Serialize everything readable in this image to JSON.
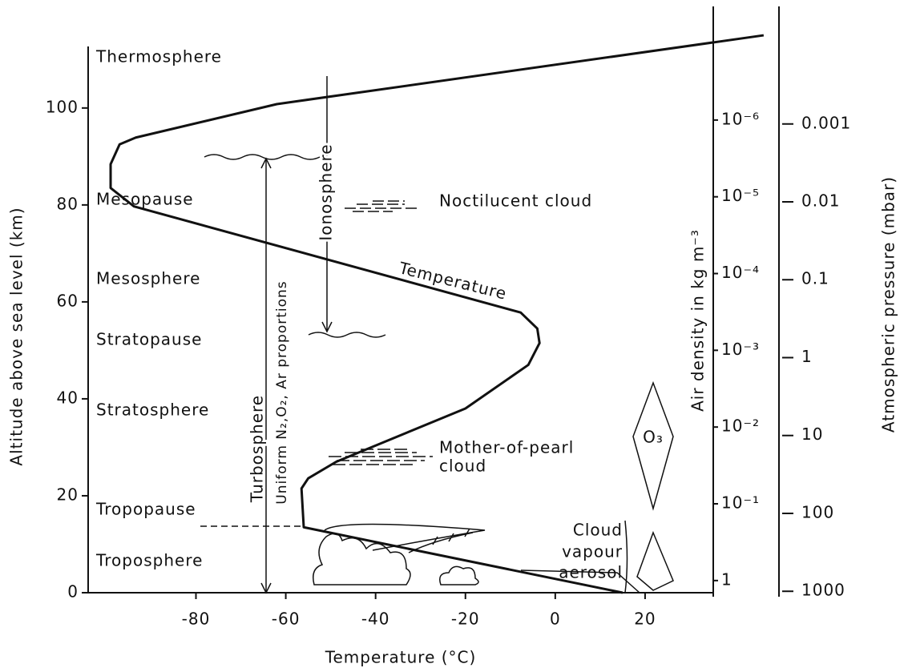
{
  "chart_data": {
    "type": "line",
    "x_label": "Temperature (°C)",
    "y_label": "Altitude above sea level (km)",
    "y2_label": "Air density in kg m⁻³",
    "y3_label": "Atmospheric pressure (mbar)",
    "xlim": [
      -104,
      35
    ],
    "ylim": [
      0,
      116
    ],
    "xticks": [
      -80,
      -60,
      -40,
      -20,
      0,
      20
    ],
    "yticks": [
      0,
      20,
      40,
      60,
      80,
      100
    ],
    "y2log": true,
    "y2lim": [
      1.44,
      6.8e-08
    ],
    "y2ticks": [
      {
        "value": 1e-06,
        "label": "10⁻⁶"
      },
      {
        "value": 1e-05,
        "label": "10⁻⁵"
      },
      {
        "value": 0.0001,
        "label": "10⁻⁴"
      },
      {
        "value": 0.001,
        "label": "10⁻³"
      },
      {
        "value": 0.01,
        "label": "10⁻²"
      },
      {
        "value": 0.1,
        "label": "10⁻¹"
      },
      1
    ],
    "y3log": true,
    "y3lim": [
      1043,
      6.3e-05
    ],
    "y3ticks": [
      0.001,
      0.01,
      0.1,
      1,
      10,
      100,
      1000
    ],
    "series": [
      {
        "name": "Temperature",
        "color": "#111111",
        "x": [
          15,
          -56,
          -56.5,
          -55,
          -48.8,
          -20,
          -6,
          -3.5,
          -4,
          -7.7,
          -93.8,
          -99,
          -99,
          -97,
          -93.4,
          -62,
          46.4
        ],
        "values": [
          0,
          13.5,
          21.5,
          23.6,
          27,
          38,
          47,
          51.5,
          54.5,
          57.8,
          79.7,
          83.5,
          88.4,
          92.5,
          93.9,
          100.8,
          115
        ]
      }
    ],
    "layers": [
      "Thermosphere",
      "Mesopause",
      "Mesosphere",
      "Stratopause",
      "Stratosphere",
      "Tropopause",
      "Troposphere"
    ],
    "annotations": {
      "ionosphere": "Ionosphere",
      "noctilucent": "Noctilucent cloud",
      "mother_of_pearl": [
        "Mother-of-pearl",
        "cloud"
      ],
      "ozone": "O₃",
      "lower": [
        "Cloud",
        "vapour",
        "aerosol"
      ],
      "turbosphere": "Turbosphere",
      "uniform": "Uniform N₂,O₂, Ar proportions"
    }
  }
}
